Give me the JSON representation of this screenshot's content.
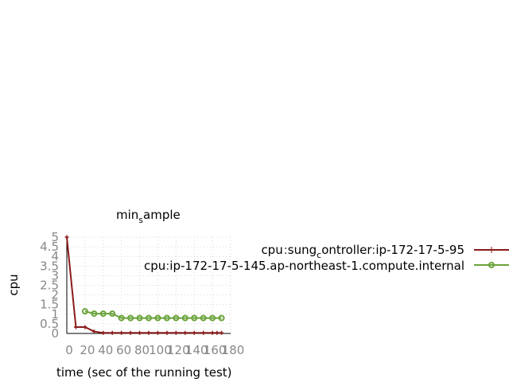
{
  "chart_data": {
    "type": "line",
    "title": "min_sample",
    "title_main": "min",
    "title_sub": "s",
    "title_rest": "ample",
    "xlabel": "time (sec of the running test)",
    "ylabel": "cpu",
    "xlim": [
      0,
      180
    ],
    "ylim": [
      0,
      5
    ],
    "xticks": [
      0,
      20,
      40,
      60,
      80,
      100,
      120,
      140,
      160,
      180
    ],
    "yticks": [
      0,
      0.5,
      1,
      1.5,
      2,
      2.5,
      3,
      3.5,
      4,
      4.5,
      5
    ],
    "xtick_labels": [
      "0",
      "20",
      "40",
      "60",
      "80",
      "100",
      "120",
      "140",
      "160",
      "180"
    ],
    "ytick_labels": [
      "0",
      "0.5",
      "1",
      "1.5",
      "2",
      "2.5",
      "3",
      "3.5",
      "4",
      "4.5",
      "5"
    ],
    "grid": true,
    "legend_position": "right",
    "series": [
      {
        "name": "cpu:sung_controller:ip-172-17-5-95",
        "legend_parts": [
          "cpu",
          "sung",
          "c",
          "ontroller",
          "ip-172-17-5-95"
        ],
        "color": "#8b1a1a",
        "marker": "plus",
        "x": [
          0,
          10,
          20,
          30,
          40,
          50,
          60,
          70,
          80,
          90,
          100,
          110,
          120,
          130,
          140,
          150,
          160,
          165,
          170
        ],
        "y": [
          5,
          0.33,
          0.33,
          0.1,
          0.03,
          0.03,
          0.03,
          0.03,
          0.03,
          0.03,
          0.03,
          0.03,
          0.03,
          0.03,
          0.03,
          0.03,
          0.03,
          0.03,
          0.03
        ]
      },
      {
        "name": "cpu:ip-172-17-5-145.ap-northeast-1.compute.internal",
        "legend_parts": [
          "cpu",
          "ip-172-17-5-145.ap-northeast-1.compute.internal"
        ],
        "color": "#6aa33a",
        "marker": "circle",
        "x": [
          20,
          30,
          40,
          50,
          60,
          70,
          80,
          90,
          100,
          110,
          120,
          130,
          140,
          150,
          160,
          170
        ],
        "y": [
          1.15,
          1.03,
          1.03,
          1.03,
          0.8,
          0.8,
          0.8,
          0.8,
          0.8,
          0.8,
          0.8,
          0.8,
          0.8,
          0.8,
          0.8,
          0.8
        ]
      }
    ]
  }
}
